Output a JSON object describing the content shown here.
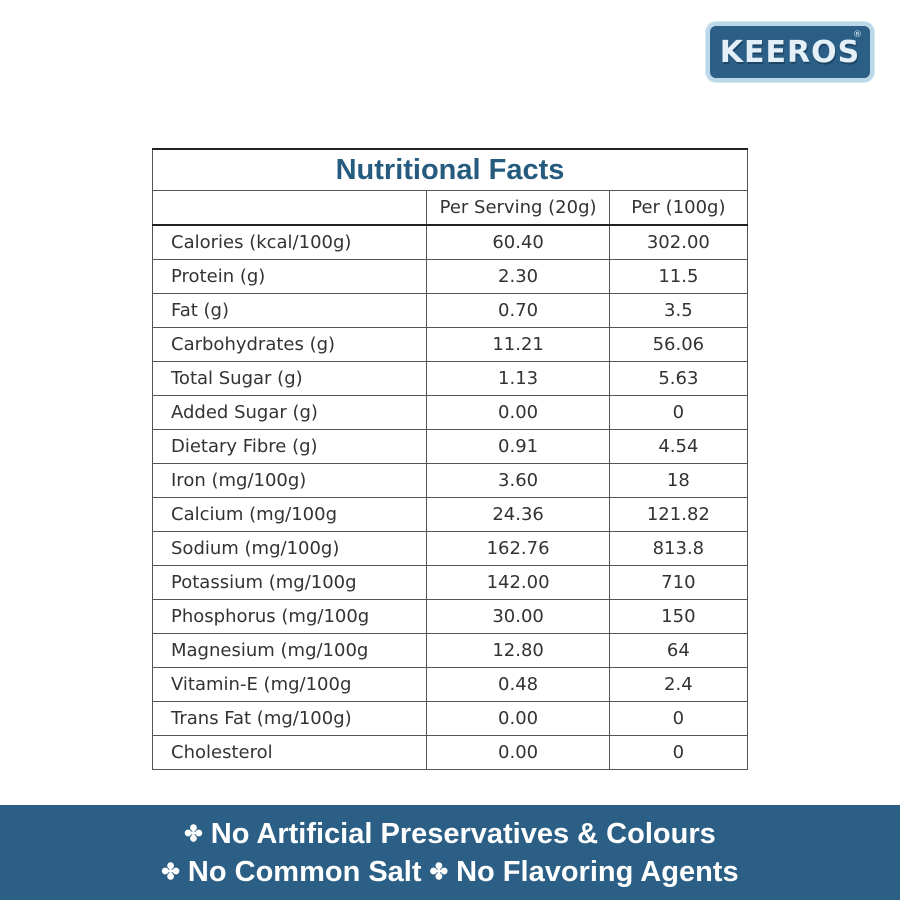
{
  "brand": {
    "name": "KEEROS",
    "registered_mark": "®",
    "color": "#2b5f86"
  },
  "table": {
    "title": "Nutritional Facts",
    "headers": [
      "",
      "Per Serving (20g)",
      "Per (100g)"
    ],
    "rows": [
      {
        "name": "Calories (kcal/100g)",
        "serving": "60.40",
        "per100": "302.00"
      },
      {
        "name": "Protein (g)",
        "serving": "2.30",
        "per100": "11.5"
      },
      {
        "name": "Fat (g)",
        "serving": "0.70",
        "per100": "3.5"
      },
      {
        "name": "Carbohydrates (g)",
        "serving": "11.21",
        "per100": "56.06"
      },
      {
        "name": "Total Sugar (g)",
        "serving": "1.13",
        "per100": "5.63"
      },
      {
        "name": "Added Sugar (g)",
        "serving": "0.00",
        "per100": "0"
      },
      {
        "name": "Dietary Fibre (g)",
        "serving": "0.91",
        "per100": "4.54"
      },
      {
        "name": "Iron (mg/100g)",
        "serving": "3.60",
        "per100": "18"
      },
      {
        "name": "Calcium (mg/100g",
        "serving": "24.36",
        "per100": "121.82"
      },
      {
        "name": "Sodium (mg/100g)",
        "serving": "162.76",
        "per100": "813.8"
      },
      {
        "name": "Potassium (mg/100g",
        "serving": "142.00",
        "per100": "710"
      },
      {
        "name": "Phosphorus (mg/100g",
        "serving": "30.00",
        "per100": "150"
      },
      {
        "name": "Magnesium (mg/100g",
        "serving": "12.80",
        "per100": "64"
      },
      {
        "name": "Vitamin-E (mg/100g",
        "serving": "0.48",
        "per100": "2.4"
      },
      {
        "name": "Trans Fat (mg/100g)",
        "serving": "0.00",
        "per100": "0"
      },
      {
        "name": "Cholesterol",
        "serving": "0.00",
        "per100": "0"
      }
    ]
  },
  "banner": {
    "bullet": "✤",
    "claims": [
      "No Artificial Preservatives & Colours",
      "No Common Salt",
      "No Flavoring Agents"
    ],
    "color": "#2b5f86"
  }
}
